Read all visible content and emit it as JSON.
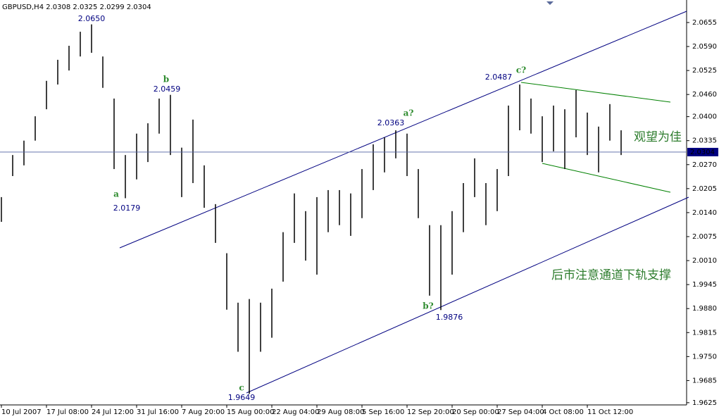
{
  "chart_data": {
    "type": "range",
    "title": "GBPUSD,H4  2.0308 2.0325 2.0299 2.0304",
    "color": "#000000",
    "categories": [
      "10 Jul 2007",
      null,
      null,
      null,
      "17 Jul 08:00",
      null,
      null,
      null,
      "24 Jul 12:00",
      null,
      null,
      null,
      "31 Jul 16:00",
      null,
      null,
      null,
      "7 Aug 20:00",
      null,
      null,
      null,
      "15 Aug 00:00",
      null,
      null,
      null,
      "22 Aug 04:00",
      null,
      null,
      null,
      "29 Aug 08:00",
      null,
      null,
      null,
      "5 Sep 16:00",
      null,
      null,
      null,
      "12 Sep 20:00",
      null,
      null,
      null,
      "20 Sep 00:00",
      null,
      null,
      null,
      "27 Sep 04:00",
      null,
      null,
      null,
      "4 Oct 08:00",
      null,
      null,
      null,
      "11 Oct 12:00",
      null,
      null,
      null
    ],
    "high": [
      2.0182,
      2.0296,
      2.0335,
      2.0401,
      2.0497,
      2.0554,
      2.0592,
      2.063,
      2.065,
      2.0563,
      2.0449,
      2.0296,
      2.0354,
      2.0382,
      2.0449,
      2.0459,
      2.0316,
      2.0392,
      2.0268,
      2.0163,
      2.003,
      1.9896,
      1.9906,
      1.9896,
      1.9934,
      2.0087,
      2.0192,
      2.0144,
      2.0182,
      2.0201,
      2.0201,
      2.0192,
      2.0258,
      2.0325,
      2.0344,
      2.0363,
      2.0354,
      2.0258,
      2.0106,
      2.0106,
      2.0144,
      2.022,
      2.0287,
      2.022,
      2.0258,
      2.043,
      2.0487,
      2.0449,
      2.0401,
      2.043,
      2.042,
      2.0472,
      2.0411,
      2.0373,
      2.0434,
      2.0363
    ],
    "low": [
      2.0115,
      2.0239,
      2.0268,
      2.0335,
      2.042,
      2.0487,
      2.0525,
      2.0563,
      2.0573,
      2.0478,
      2.0258,
      2.0179,
      2.023,
      2.0277,
      2.0354,
      2.0296,
      2.0182,
      2.022,
      2.0153,
      2.0058,
      1.9877,
      1.9763,
      1.9649,
      1.9763,
      1.9801,
      1.9953,
      2.0058,
      2.001,
      1.9972,
      2.0087,
      2.0106,
      2.0077,
      2.0125,
      2.0201,
      2.0249,
      2.0287,
      2.0239,
      2.0125,
      1.9915,
      1.9876,
      1.9972,
      2.0087,
      2.0182,
      2.0106,
      2.0144,
      2.0239,
      2.0363,
      2.0354,
      2.0277,
      2.0306,
      2.0258,
      2.0344,
      2.0296,
      2.0249,
      2.0335,
      2.0296
    ],
    "ylim": [
      1.9619,
      2.0716
    ],
    "yticks": [
      2.0655,
      {
        "value": 2.059,
        "label": "2.0590"
      },
      2.0525,
      {
        "value": 2.046,
        "label": "2.0460"
      },
      {
        "value": 2.04,
        "label": "2.0400"
      },
      2.0335,
      {
        "value": 2.027,
        "label": "2.0270"
      },
      2.0205,
      {
        "value": 2.014,
        "label": "2.0140"
      },
      2.0075,
      {
        "value": 2.001,
        "label": "2.0010"
      },
      1.9945,
      {
        "value": 1.988,
        "label": "1.9880"
      },
      1.9815,
      {
        "value": 1.975,
        "label": "1.9750"
      },
      1.9685,
      1.9625
    ],
    "last_price": 2.0304,
    "annotations": [
      "2.0650",
      "b",
      "2.0459",
      "a",
      "2.0179",
      "2.0363",
      "a?",
      "2.0487",
      "c?",
      "b?",
      "1.9876",
      "c",
      "1.9649",
      "观望为佳",
      "后市注意通道下轨支撑"
    ]
  }
}
